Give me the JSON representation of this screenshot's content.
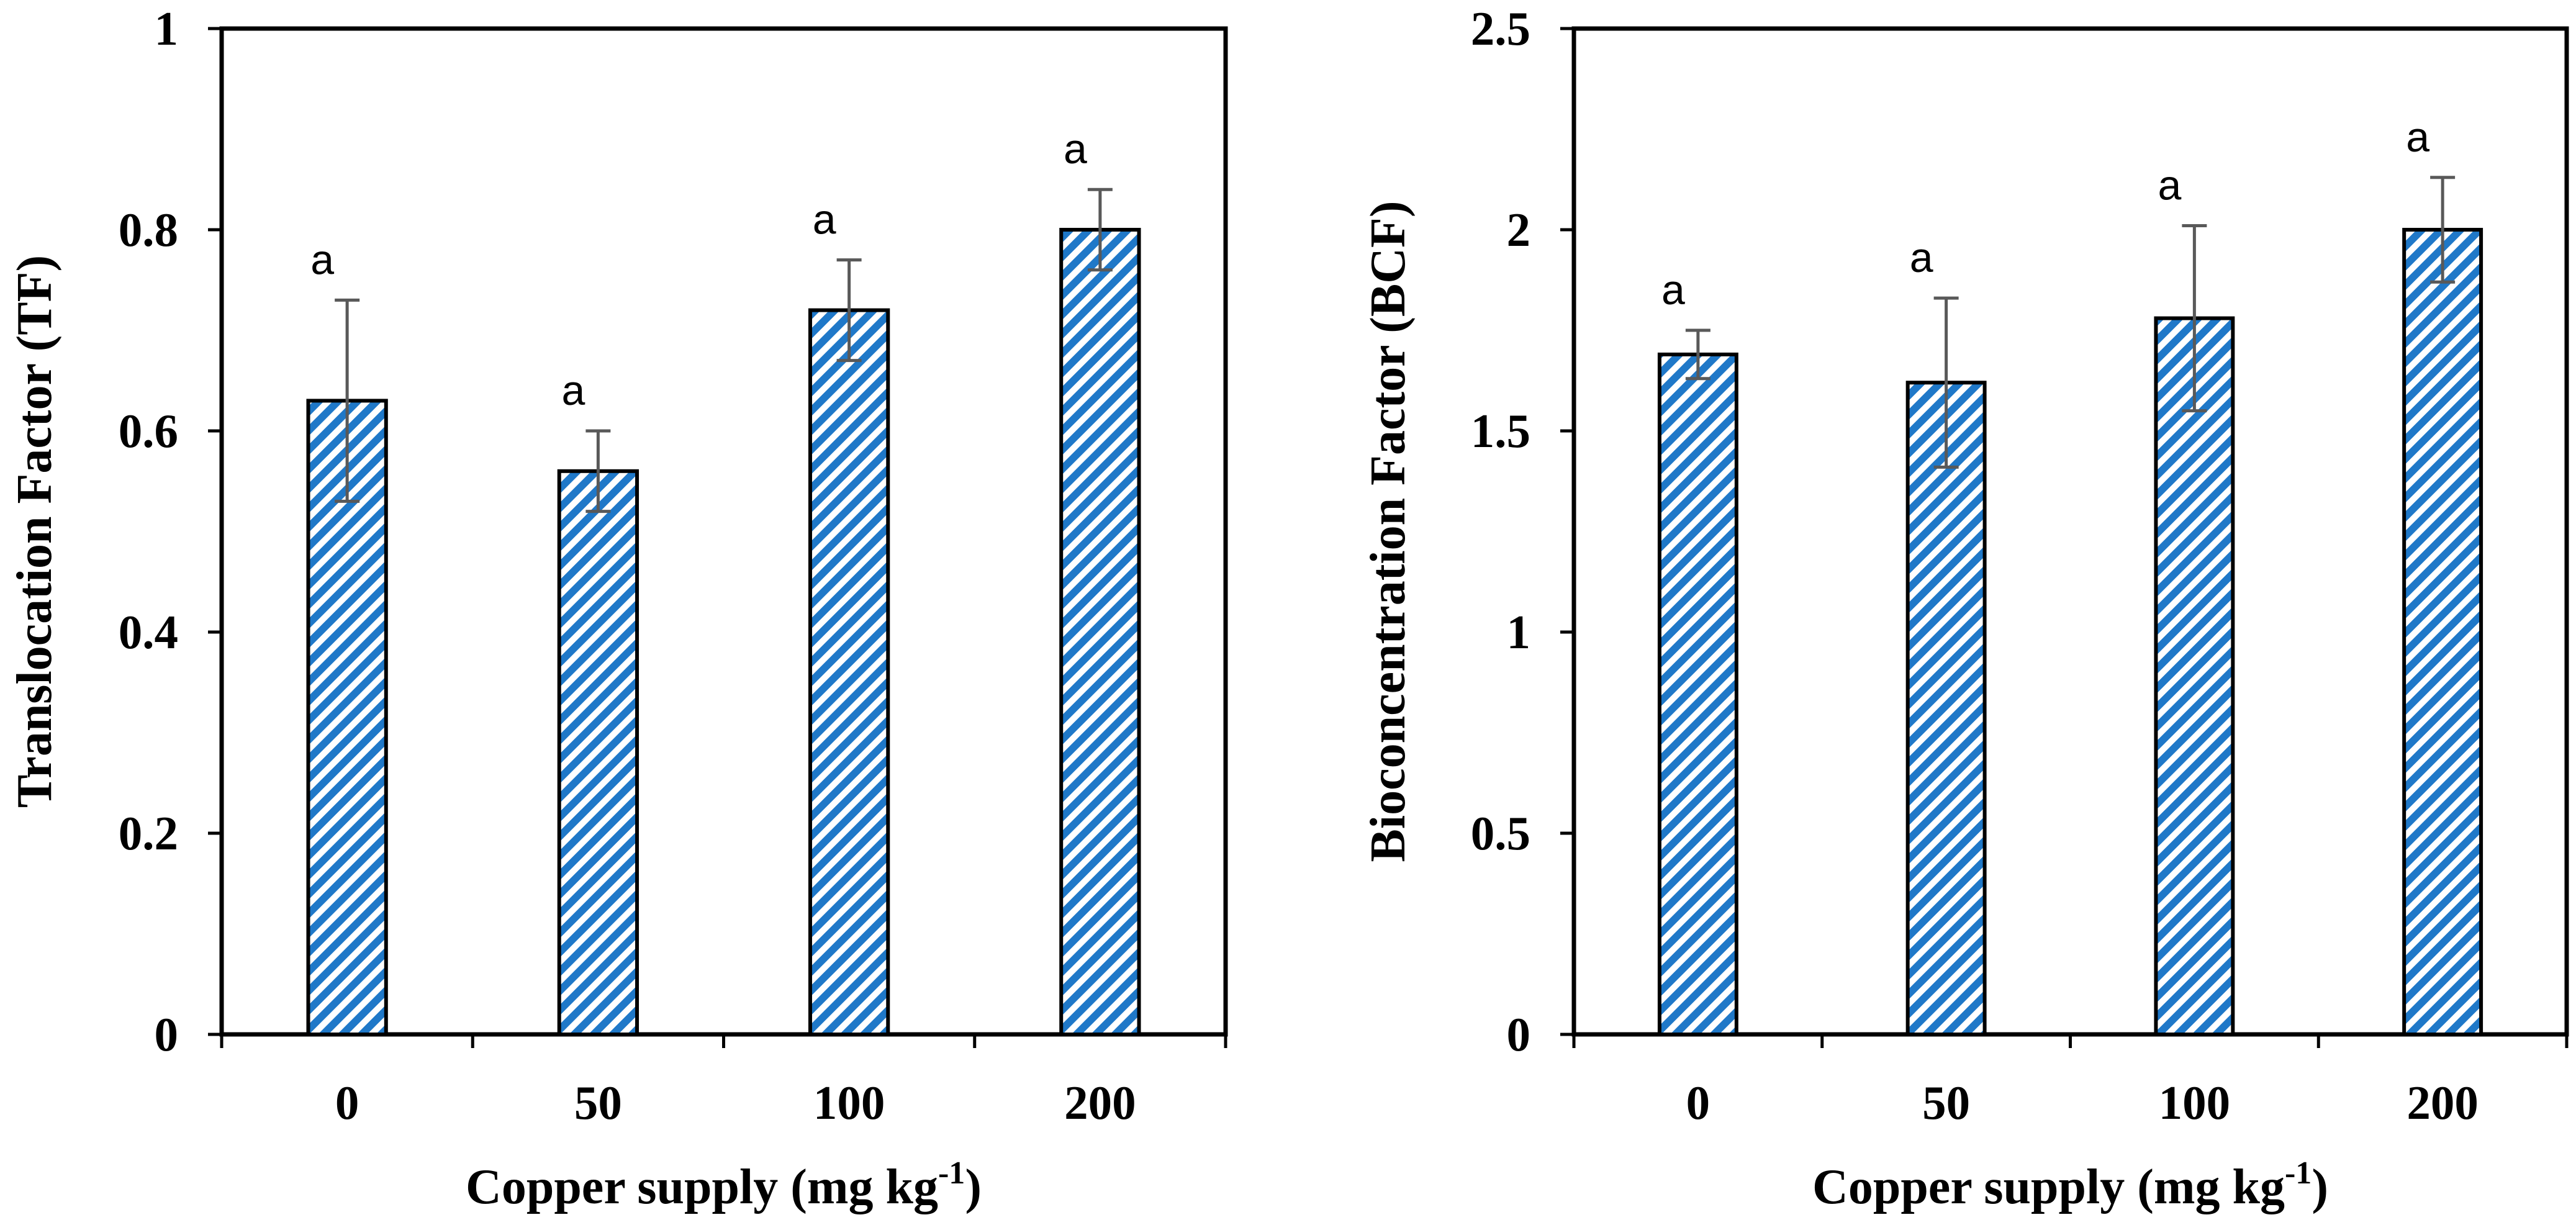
{
  "chart_data": [
    {
      "type": "bar",
      "categories": [
        "0",
        "50",
        "100",
        "200"
      ],
      "values": [
        0.63,
        0.56,
        0.72,
        0.8
      ],
      "errors": [
        0.1,
        0.04,
        0.05,
        0.04
      ],
      "significance": [
        "a",
        "a",
        "a",
        "a"
      ],
      "ylim": [
        0,
        1
      ],
      "yticks": [
        0,
        0.2,
        0.4,
        0.6,
        0.8,
        1
      ],
      "ytick_labels": [
        "0",
        "0.2",
        "0.4",
        "0.6",
        "0.8",
        "1"
      ],
      "ylabel": "Translocation Factor (TF)",
      "xlabel": "Copper supply (mg kg",
      "xlabel_sup": "-1",
      "xlabel_end": ")",
      "grid": false,
      "bar_color": "#1f78c8",
      "bar_fill": "diagonal-hatch"
    },
    {
      "type": "bar",
      "categories": [
        "0",
        "50",
        "100",
        "200"
      ],
      "values": [
        1.69,
        1.62,
        1.78,
        2.0
      ],
      "errors": [
        0.06,
        0.21,
        0.23,
        0.13
      ],
      "significance": [
        "a",
        "a",
        "a",
        "a"
      ],
      "ylim": [
        0,
        2.5
      ],
      "yticks": [
        0,
        0.5,
        1,
        1.5,
        2,
        2.5
      ],
      "ytick_labels": [
        "0",
        "0.5",
        "1",
        "1.5",
        "2",
        "2.5"
      ],
      "ylabel": "Bioconcentration Factor (BCF)",
      "xlabel": "Copper supply (mg kg",
      "xlabel_sup": "-1",
      "xlabel_end": ")",
      "grid": false,
      "bar_color": "#1f78c8",
      "bar_fill": "diagonal-hatch"
    }
  ]
}
